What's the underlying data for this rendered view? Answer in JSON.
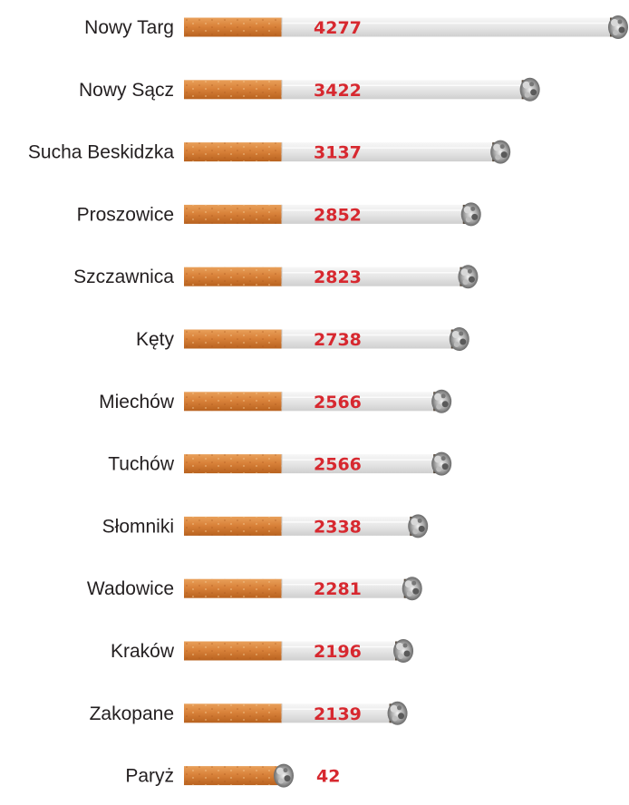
{
  "chart_data": {
    "type": "bar",
    "orientation": "horizontal",
    "title": "",
    "xlabel": "",
    "ylabel": "",
    "grid": false,
    "legend": "none",
    "bar_style": "cigarette",
    "categories": [
      "Nowy Targ",
      "Nowy Sącz",
      "Sucha Beskidzka",
      "Proszowice",
      "Szczawnica",
      "Kęty",
      "Miechów",
      "Tuchów",
      "Słomniki",
      "Wadowice",
      "Kraków",
      "Zakopane",
      "Paryż"
    ],
    "values": [
      4277,
      3422,
      3137,
      2852,
      2823,
      2738,
      2566,
      2566,
      2338,
      2281,
      2196,
      2139,
      42
    ],
    "value_labels": [
      "4277",
      "3422",
      "3137",
      "2852",
      "2823",
      "2738",
      "2566",
      "2566",
      "2338",
      "2281",
      "2196",
      "2139",
      "42"
    ],
    "xlim": [
      0,
      4277
    ]
  },
  "colors": {
    "filter": "#d9823a",
    "filter_dark": "#b8621f",
    "paper": "#ebebeb",
    "ash": "#8a8a8a",
    "value_text": "#d7282f",
    "label_text": "#231f20"
  }
}
